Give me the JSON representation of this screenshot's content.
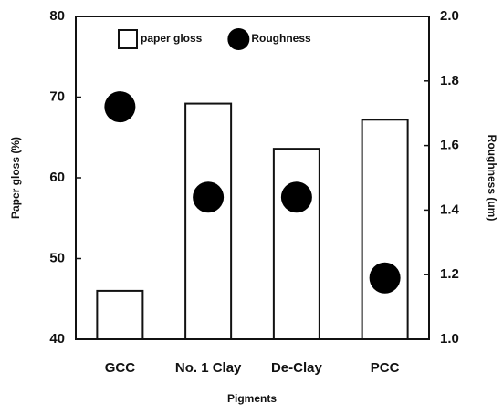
{
  "chart_data": {
    "type": "bar",
    "x_label": "Pigments",
    "y_label": "Paper gloss (%)",
    "y2_label": "Roughness (um)",
    "categories": [
      "GCC",
      "No. 1 Clay",
      "De-Clay",
      "PCC"
    ],
    "series": [
      {
        "name": "paper gloss",
        "type": "bar",
        "color": "#ffffff",
        "values": [
          46,
          69.2,
          63.6,
          67.2
        ]
      },
      {
        "name": "Roughness",
        "type": "scatter",
        "axis": "y2",
        "color": "#000000",
        "values": [
          1.72,
          1.44,
          1.44,
          1.19
        ]
      }
    ],
    "ylim": [
      40,
      80
    ],
    "yticks": [
      40,
      50,
      60,
      70,
      80
    ],
    "y2lim": [
      1.0,
      2.0
    ],
    "y2ticks": [
      {
        "value": 1.0,
        "label": "1.0"
      },
      1.2,
      1.4,
      1.6,
      1.8,
      {
        "value": 2.0,
        "label": "2.0"
      }
    ],
    "legend": "top",
    "grid": false
  }
}
